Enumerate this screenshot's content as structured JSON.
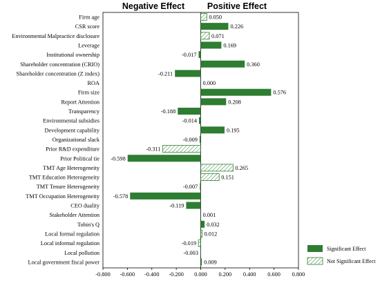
{
  "colors": {
    "significant": "#2e7d32",
    "not_significant_stroke": "#2e7d32",
    "not_significant_fill": "#ffffff"
  },
  "headers": {
    "negative": "Negative Effect",
    "positive": "Positive Effect"
  },
  "legend": {
    "significant": "Significant Effect",
    "not_significant": "Not Significant Effect"
  },
  "chart_data": {
    "type": "bar",
    "orientation": "horizontal",
    "categories": [
      "Firm age",
      "CSR score",
      "Environmental Malpractice disclosure",
      "Leverage",
      "Institutional ownership",
      "Shareholder concentration (CRIO)",
      "Shareholder concentration (Z index)",
      "ROA",
      "Firm size",
      "Report Attention",
      "Transparency",
      "Environmental subsidies",
      "Development capability",
      "Organizational slack",
      "Prior R&D expenditure",
      "Prior Political tie",
      "TMT Age Heterogeneity",
      "TMT Education Heterogeneity",
      "TMT Tenure Heterogeneity",
      "TMT Occupation Heterogeneity",
      "CEO duality",
      "Stakeholder Attention",
      "Tobin's Q",
      "Local formal regulation",
      "Local informal regulation",
      "Local pollution",
      "Local government fiscal power"
    ],
    "values": [
      0.05,
      0.226,
      0.071,
      0.169,
      -0.017,
      0.36,
      -0.211,
      0.0,
      0.576,
      0.208,
      -0.188,
      -0.014,
      0.195,
      -0.009,
      -0.311,
      -0.598,
      0.265,
      0.151,
      -0.007,
      -0.578,
      -0.119,
      0.001,
      0.032,
      0.012,
      -0.019,
      -0.003,
      0.009
    ],
    "value_labels": [
      "0.050",
      "0.226",
      "0.071",
      "0.169",
      "-0.017",
      "0.360",
      "-0.211",
      "0.000",
      "0.576",
      "0.208",
      "-0.188",
      "-0.014",
      "0.195",
      "-0.009",
      "-0.311",
      "-0.598",
      "0.265",
      "0.151",
      "-0.007",
      "-0.578",
      "-0.119",
      "0.001",
      "0.032",
      "0.012",
      "-0.019",
      "-0.003",
      "0.009"
    ],
    "significant": [
      false,
      true,
      false,
      true,
      true,
      true,
      true,
      true,
      true,
      true,
      true,
      true,
      true,
      true,
      false,
      true,
      false,
      false,
      true,
      true,
      true,
      true,
      true,
      false,
      false,
      true,
      true
    ],
    "xlim": [
      -0.8,
      0.8
    ],
    "xticks": [
      "-0.800",
      "-0.600",
      "-0.400",
      "-0.200",
      "0.000",
      "0.200",
      "0.400",
      "0.600",
      "0.800"
    ],
    "xtick_values": [
      -0.8,
      -0.6,
      -0.4,
      -0.2,
      0.0,
      0.2,
      0.4,
      0.6,
      0.8
    ],
    "legend_position": "bottom-right"
  }
}
